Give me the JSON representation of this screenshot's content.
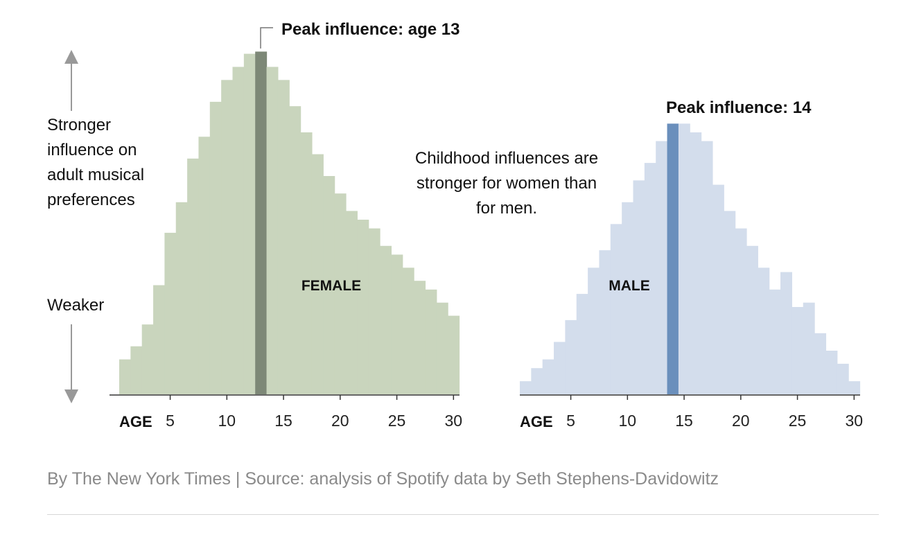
{
  "chart_data": [
    {
      "type": "bar",
      "series_name": "FEMALE",
      "x": [
        1,
        2,
        3,
        4,
        5,
        6,
        7,
        8,
        9,
        10,
        11,
        12,
        13,
        14,
        15,
        16,
        17,
        18,
        19,
        20,
        21,
        22,
        23,
        24,
        25,
        26,
        27,
        28,
        29,
        30
      ],
      "values": [
        8,
        11,
        16,
        25,
        37,
        44,
        54,
        59,
        67,
        72,
        75,
        78,
        78.5,
        75,
        72,
        66,
        60,
        55,
        50,
        46,
        42,
        40,
        38,
        34,
        32,
        29,
        26,
        24,
        21,
        18
      ],
      "highlight_x": 13,
      "peak_label": "Peak influence: age 13",
      "xticks": [
        5,
        10,
        15,
        20,
        25,
        30
      ],
      "xlabel": "AGE",
      "colors": {
        "bar": "#c9d5bd",
        "highlight": "#7d8877"
      }
    },
    {
      "type": "bar",
      "series_name": "MALE",
      "x": [
        1,
        2,
        3,
        4,
        5,
        6,
        7,
        8,
        9,
        10,
        11,
        12,
        13,
        14,
        15,
        16,
        17,
        18,
        19,
        20,
        21,
        22,
        23,
        24,
        25,
        26,
        27,
        28,
        29,
        30
      ],
      "values": [
        3,
        6,
        8,
        12,
        17,
        23,
        29,
        33,
        39,
        44,
        49,
        53,
        58,
        62,
        62,
        60,
        58,
        48,
        42,
        38,
        34,
        29,
        24,
        28,
        20,
        21,
        14,
        10,
        7,
        3
      ],
      "highlight_x": 14,
      "peak_label": "Peak influence: 14",
      "xticks": [
        5,
        10,
        15,
        20,
        25,
        30
      ],
      "xlabel": "AGE",
      "colors": {
        "bar": "#d3ddec",
        "highlight": "#6a8fbc"
      }
    }
  ],
  "ylabel": {
    "strong": "Stronger influence on adult musical preferences",
    "weak": "Weaker"
  },
  "annotation": "Childhood influences are stronger for women than for men.",
  "source": "By The New York Times | Source: analysis of Spotify data by Seth Stephens-Davidowitz"
}
